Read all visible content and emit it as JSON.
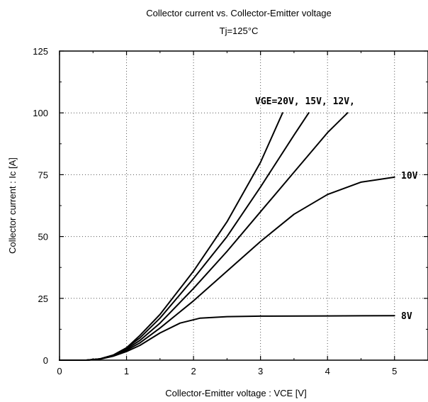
{
  "chart_data": {
    "type": "line",
    "title": "Collector current  vs.  Collector-Emitter  voltage",
    "subtitle": "Tj=125°C",
    "xlabel": "Collector-Emitter  voltage  :  VCE [V]",
    "ylabel": "Collector  current  :  Ic [A]",
    "xlim": [
      0,
      5.5
    ],
    "ylim": [
      0,
      125
    ],
    "x_ticks": [
      0,
      1,
      2,
      3,
      4,
      5
    ],
    "y_ticks": [
      0,
      25,
      50,
      75,
      100,
      125
    ],
    "x_tick_labels": [
      "0",
      "1",
      "2",
      "3",
      "4",
      "5"
    ],
    "y_tick_labels": [
      "0",
      "25",
      "50",
      "75",
      "100",
      "125"
    ],
    "grid": true,
    "annotations": {
      "vge_high": "VGE=20V, 15V, 12V,",
      "vge_10": "10V",
      "vge_8": "8V"
    },
    "series": [
      {
        "name": "VGE=20V",
        "points": [
          [
            0.4,
            0
          ],
          [
            0.6,
            0.5
          ],
          [
            0.8,
            2
          ],
          [
            1.0,
            5
          ],
          [
            1.2,
            10
          ],
          [
            1.5,
            18.5
          ],
          [
            2.0,
            36
          ],
          [
            2.5,
            56
          ],
          [
            3.0,
            80
          ],
          [
            3.33,
            100
          ]
        ]
      },
      {
        "name": "15V",
        "points": [
          [
            0.4,
            0
          ],
          [
            0.6,
            0.5
          ],
          [
            0.8,
            2
          ],
          [
            1.0,
            5
          ],
          [
            1.2,
            9
          ],
          [
            1.5,
            17
          ],
          [
            2.0,
            33
          ],
          [
            2.5,
            50
          ],
          [
            3.0,
            70
          ],
          [
            3.5,
            91
          ],
          [
            3.72,
            100
          ]
        ]
      },
      {
        "name": "12V",
        "points": [
          [
            0.4,
            0
          ],
          [
            0.6,
            0.5
          ],
          [
            0.8,
            2
          ],
          [
            1.0,
            4.5
          ],
          [
            1.2,
            8
          ],
          [
            1.5,
            15
          ],
          [
            2.0,
            29
          ],
          [
            2.5,
            44
          ],
          [
            3.0,
            60
          ],
          [
            3.5,
            76
          ],
          [
            4.0,
            92
          ],
          [
            4.3,
            100
          ]
        ]
      },
      {
        "name": "10V",
        "points": [
          [
            0.4,
            0
          ],
          [
            0.6,
            0.5
          ],
          [
            0.8,
            1.8
          ],
          [
            1.0,
            4
          ],
          [
            1.2,
            7
          ],
          [
            1.5,
            13
          ],
          [
            2.0,
            24
          ],
          [
            2.5,
            36
          ],
          [
            3.0,
            48
          ],
          [
            3.5,
            59
          ],
          [
            4.0,
            67
          ],
          [
            4.5,
            72
          ],
          [
            5.0,
            74
          ]
        ]
      },
      {
        "name": "8V",
        "points": [
          [
            0.4,
            0
          ],
          [
            0.6,
            0.4
          ],
          [
            0.8,
            1.6
          ],
          [
            1.0,
            3.5
          ],
          [
            1.2,
            6
          ],
          [
            1.5,
            11
          ],
          [
            1.8,
            15
          ],
          [
            2.1,
            17
          ],
          [
            2.5,
            17.6
          ],
          [
            3.0,
            17.8
          ],
          [
            4.0,
            17.9
          ],
          [
            5.0,
            18
          ]
        ]
      }
    ]
  }
}
